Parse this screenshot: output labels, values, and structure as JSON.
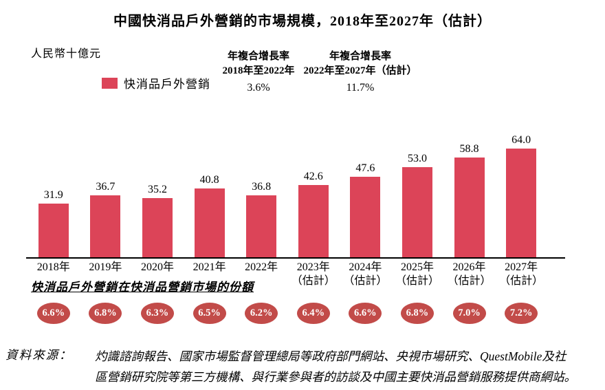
{
  "title": "中國快消品戶外營銷的市場規模，2018年至2027年（估計）",
  "unit_label": "人民幣十億元",
  "legend": {
    "label": "快消品戶外營銷"
  },
  "cagr": [
    {
      "line1": "年複合增長率",
      "line2": "2018年至2022年",
      "value": "3.6%"
    },
    {
      "line1": "年複合增長率",
      "line2": "2022年至2027年（估計）",
      "value": "11.7%"
    }
  ],
  "share_note": "快消品戶外營銷在快消品營銷市場的份額",
  "source": {
    "label": "資料來源：",
    "line1": "灼識諮詢報告、國家市場監督管理總局等政府部門網站、央視市場研究、QuestMobile及社",
    "line2": "區營銷研究院等第三方機構、與行業參與者的訪談及中國主要快消品營銷服務提供商網站。"
  },
  "chart_data": {
    "type": "bar",
    "title": "中國快消品戶外營銷的市場規模，2018年至2027年（估計）",
    "ylabel": "人民幣十億元",
    "legend": [
      "快消品戶外營銷"
    ],
    "legend_position": "top-left",
    "grid": false,
    "categories": [
      "2018年",
      "2019年",
      "2020年",
      "2021年",
      "2022年",
      "2023年",
      "2024年",
      "2025年",
      "2026年",
      "2027年"
    ],
    "category_notes": [
      "",
      "",
      "",
      "",
      "",
      "（估計）",
      "（估計）",
      "（估計）",
      "（估計）",
      "（估計）"
    ],
    "values": [
      31.9,
      36.7,
      35.2,
      40.8,
      36.8,
      42.6,
      47.6,
      53.0,
      58.8,
      64.0
    ],
    "value_labels": [
      "31.9",
      "36.7",
      "35.2",
      "40.8",
      "36.8",
      "42.6",
      "47.6",
      "53.0",
      "58.8",
      "64.0"
    ],
    "share_series_name": "快消品戶外營銷在快消品營銷市場的份額",
    "share_labels": [
      "6.6%",
      "6.8%",
      "6.3%",
      "6.5%",
      "6.2%",
      "6.4%",
      "6.6%",
      "6.8%",
      "7.0%",
      "7.2%"
    ],
    "cagr_2018_2022": "3.6%",
    "cagr_2022_2027_est": "11.7%",
    "ylim": [
      0,
      70
    ],
    "bar_color": "#DC4458",
    "badge_color": "#C24B49"
  }
}
